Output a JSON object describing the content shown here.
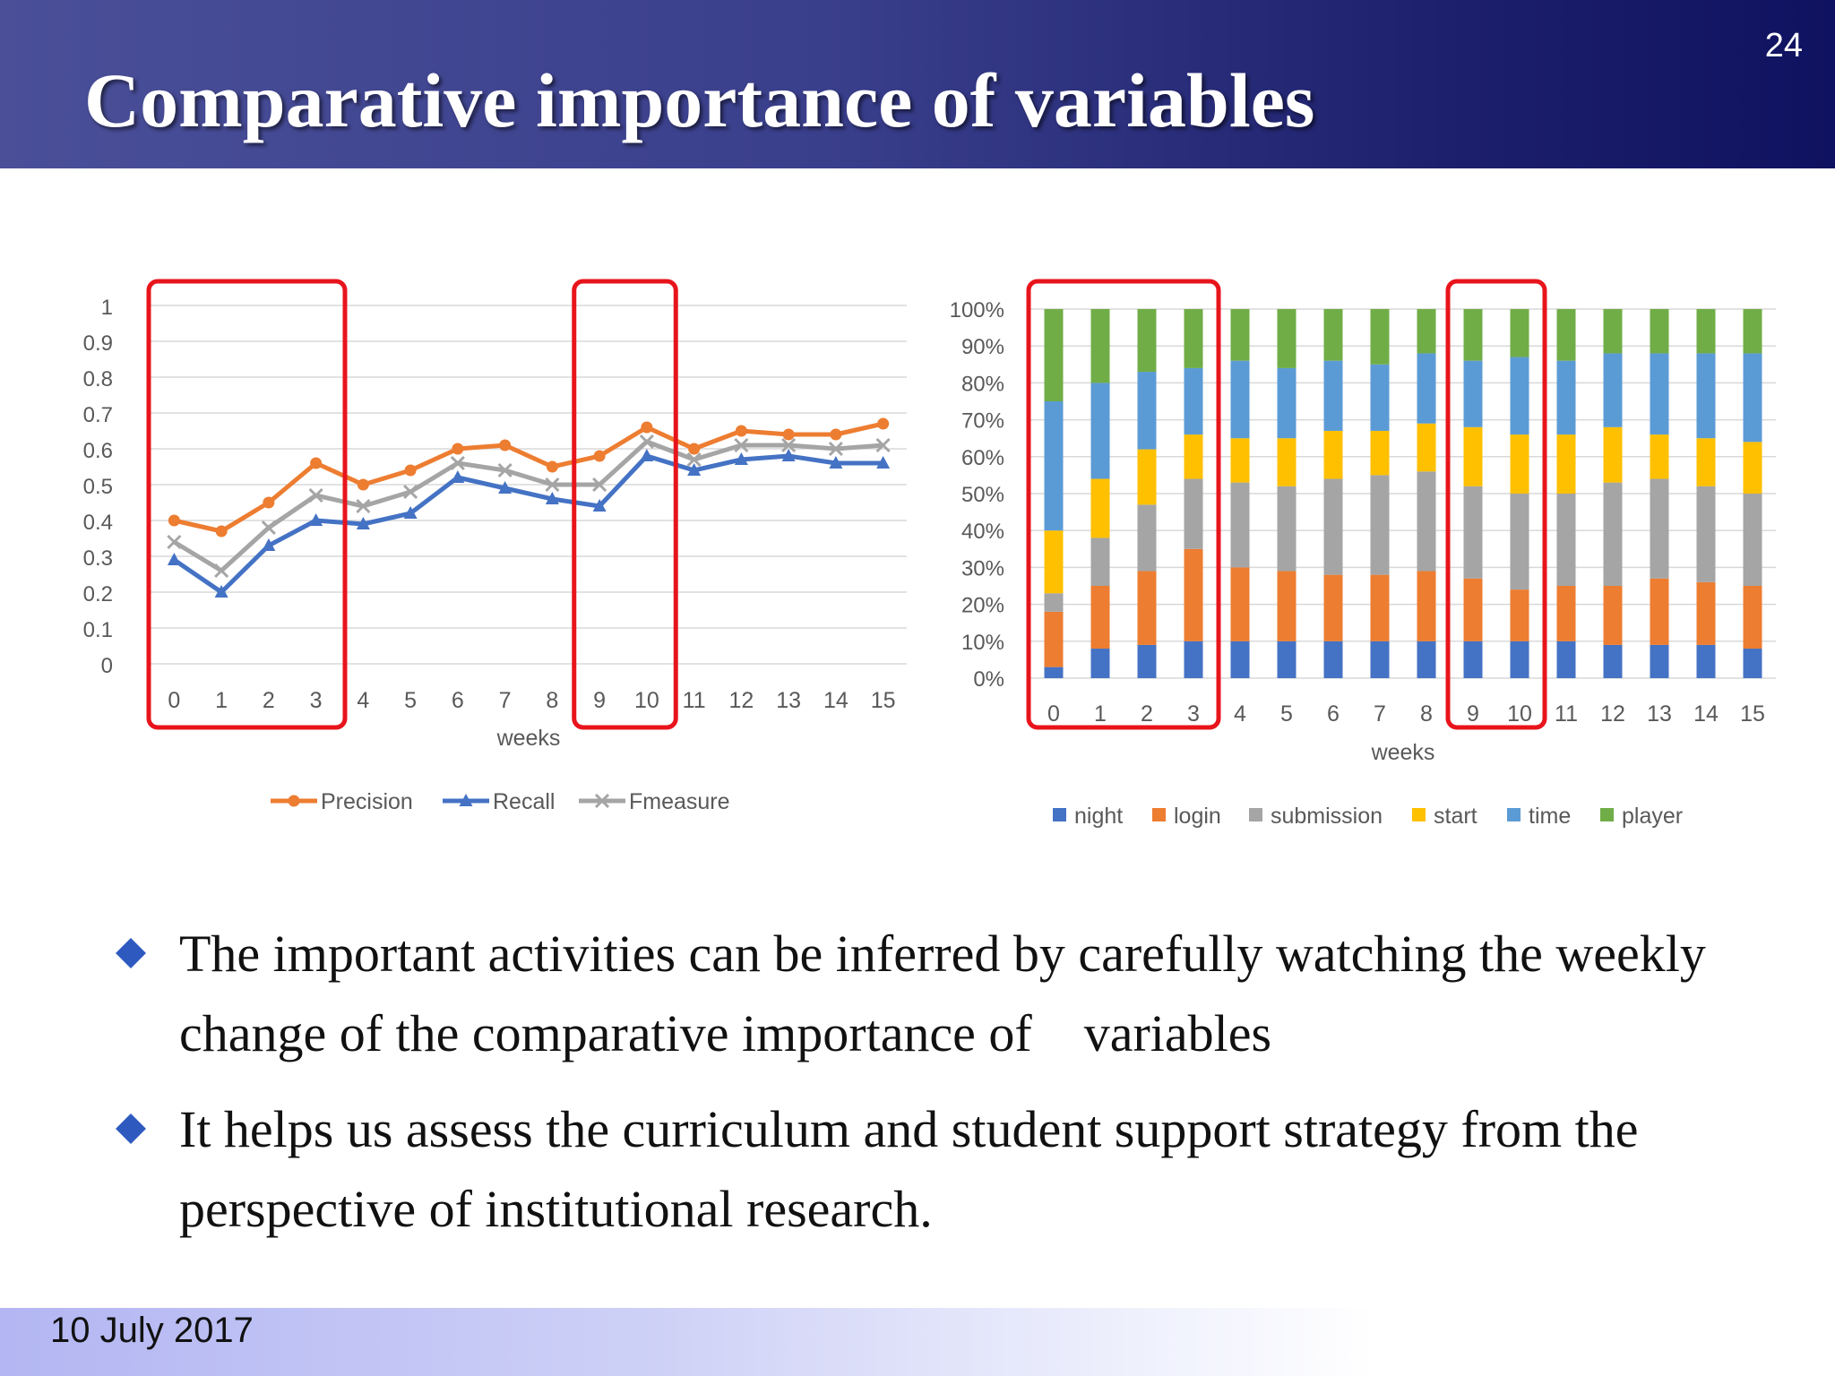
{
  "slide": {
    "title": "Comparative importance of variables",
    "number": "24",
    "date": "10 July 2017"
  },
  "bullets": [
    "The important activities can be inferred by carefully watching the weekly change of the comparative importance of    variables",
    "It helps us assess the curriculum and student support strategy from the perspective of institutional research."
  ],
  "colors": {
    "precision": "#ed7d31",
    "recall": "#4472c4",
    "fmeasure": "#a5a5a5",
    "night": "#4472c4",
    "login": "#ed7d31",
    "submission": "#a5a5a5",
    "start": "#ffc000",
    "time": "#5b9bd5",
    "player": "#70ad47",
    "highlight": "#e8141c"
  },
  "chart_data": [
    {
      "type": "line",
      "xlabel": "weeks",
      "ylabel": "",
      "x": [
        "0",
        "1",
        "2",
        "3",
        "4",
        "5",
        "6",
        "7",
        "8",
        "9",
        "10",
        "11",
        "12",
        "13",
        "14",
        "15"
      ],
      "ylim": [
        0,
        1
      ],
      "yticks": [
        "0",
        "0.1",
        "0.2",
        "0.3",
        "0.4",
        "0.5",
        "0.6",
        "0.7",
        "0.8",
        "0.9",
        "1"
      ],
      "grid": true,
      "legend": "bottom",
      "series": [
        {
          "name": "Precision",
          "marker": "circle",
          "values": [
            0.4,
            0.37,
            0.45,
            0.56,
            0.5,
            0.54,
            0.6,
            0.61,
            0.55,
            0.58,
            0.66,
            0.6,
            0.65,
            0.64,
            0.64,
            0.67
          ]
        },
        {
          "name": "Recall",
          "marker": "triangle",
          "values": [
            0.29,
            0.2,
            0.33,
            0.4,
            0.39,
            0.42,
            0.52,
            0.49,
            0.46,
            0.44,
            0.58,
            0.54,
            0.57,
            0.58,
            0.56,
            0.56
          ]
        },
        {
          "name": "Fmeasure",
          "marker": "x",
          "values": [
            0.34,
            0.26,
            0.38,
            0.47,
            0.44,
            0.48,
            0.56,
            0.54,
            0.5,
            0.5,
            0.62,
            0.57,
            0.61,
            0.61,
            0.6,
            0.61
          ]
        }
      ],
      "highlights": [
        [
          "0",
          "3"
        ],
        [
          "9",
          "10"
        ]
      ]
    },
    {
      "type": "bar",
      "stacked": "percent",
      "xlabel": "weeks",
      "ylabel": "",
      "categories": [
        "0",
        "1",
        "2",
        "3",
        "4",
        "5",
        "6",
        "7",
        "8",
        "9",
        "10",
        "11",
        "12",
        "13",
        "14",
        "15"
      ],
      "ylim": [
        0,
        100
      ],
      "yticks": [
        "0%",
        "10%",
        "20%",
        "30%",
        "40%",
        "50%",
        "60%",
        "70%",
        "80%",
        "90%",
        "100%"
      ],
      "legend": "bottom",
      "series": [
        {
          "name": "night",
          "values": [
            3,
            8,
            9,
            10,
            10,
            10,
            10,
            10,
            10,
            10,
            10,
            10,
            9,
            9,
            9,
            8
          ]
        },
        {
          "name": "login",
          "values": [
            15,
            17,
            20,
            25,
            20,
            19,
            18,
            18,
            19,
            17,
            14,
            15,
            16,
            18,
            17,
            17
          ]
        },
        {
          "name": "submission",
          "values": [
            5,
            13,
            18,
            19,
            23,
            23,
            26,
            27,
            27,
            25,
            26,
            25,
            28,
            27,
            26,
            25
          ]
        },
        {
          "name": "start",
          "values": [
            17,
            16,
            15,
            12,
            12,
            13,
            13,
            12,
            13,
            16,
            16,
            16,
            15,
            12,
            13,
            14
          ]
        },
        {
          "name": "time",
          "values": [
            35,
            26,
            21,
            18,
            21,
            19,
            19,
            18,
            19,
            18,
            21,
            20,
            20,
            22,
            23,
            24
          ]
        },
        {
          "name": "player",
          "values": [
            25,
            20,
            17,
            16,
            14,
            16,
            14,
            15,
            12,
            14,
            13,
            14,
            12,
            12,
            12,
            12
          ]
        }
      ],
      "highlights": [
        [
          "0",
          "3"
        ],
        [
          "9",
          "10"
        ]
      ]
    }
  ]
}
